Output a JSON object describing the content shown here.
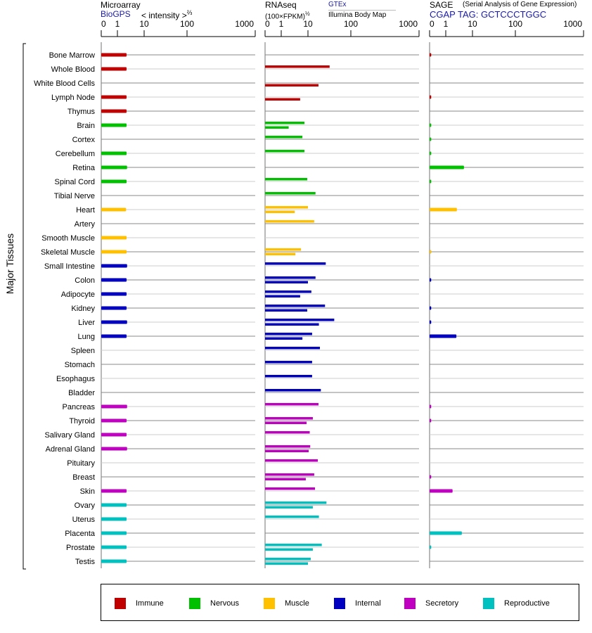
{
  "header": {
    "microarray_title": "Microarray",
    "microarray_source": "BioGPS",
    "microarray_scale": "< intensity >",
    "microarray_exponent": "⅔",
    "rnaseq_title": "RNAseq",
    "rnaseq_scale": "(100×FPKM)",
    "rnaseq_exponent": "½",
    "rnaseq_source_top": "GTEx",
    "rnaseq_source_bottom": "Illumina Body Map",
    "sage_title": "SAGE",
    "sage_subtitle": "(Serial Analysis of Gene Expression)",
    "sage_tag": "CGAP TAG: GCTCCCTGGC"
  },
  "y_group_label": "Major Tissues",
  "colors": {
    "Immune": "#c00000",
    "Nervous": "#00c000",
    "Muscle": "#ffc000",
    "Internal": "#0000c0",
    "Secretory": "#c000c0",
    "Reproductive": "#00c0c0"
  },
  "legend": [
    "Immune",
    "Nervous",
    "Muscle",
    "Internal",
    "Secretory",
    "Reproductive"
  ],
  "chart_data": {
    "type": "bar",
    "orientation": "horizontal",
    "axis_ticks": [
      "0",
      "1",
      "10",
      "100",
      "1000"
    ],
    "tick_values": [
      0,
      1,
      10,
      100,
      1000
    ],
    "xlim": [
      0,
      1000
    ],
    "grid": true,
    "legend_placement": "bottom",
    "tissues": [
      {
        "name": "Bone Marrow",
        "group": "Immune"
      },
      {
        "name": "Whole Blood",
        "group": "Immune"
      },
      {
        "name": "White Blood Cells",
        "group": "Immune"
      },
      {
        "name": "Lymph Node",
        "group": "Immune"
      },
      {
        "name": "Thymus",
        "group": "Immune"
      },
      {
        "name": "Brain",
        "group": "Nervous"
      },
      {
        "name": "Cortex",
        "group": "Nervous"
      },
      {
        "name": "Cerebellum",
        "group": "Nervous"
      },
      {
        "name": "Retina",
        "group": "Nervous"
      },
      {
        "name": "Spinal Cord",
        "group": "Nervous"
      },
      {
        "name": "Tibial Nerve",
        "group": "Nervous"
      },
      {
        "name": "Heart",
        "group": "Muscle"
      },
      {
        "name": "Artery",
        "group": "Muscle"
      },
      {
        "name": "Smooth Muscle",
        "group": "Muscle"
      },
      {
        "name": "Skeletal Muscle",
        "group": "Muscle"
      },
      {
        "name": "Small Intestine",
        "group": "Internal"
      },
      {
        "name": "Colon",
        "group": "Internal"
      },
      {
        "name": "Adipocyte",
        "group": "Internal"
      },
      {
        "name": "Kidney",
        "group": "Internal"
      },
      {
        "name": "Liver",
        "group": "Internal"
      },
      {
        "name": "Lung",
        "group": "Internal"
      },
      {
        "name": "Spleen",
        "group": "Internal"
      },
      {
        "name": "Stomach",
        "group": "Internal"
      },
      {
        "name": "Esophagus",
        "group": "Internal"
      },
      {
        "name": "Bladder",
        "group": "Internal"
      },
      {
        "name": "Pancreas",
        "group": "Secretory"
      },
      {
        "name": "Thyroid",
        "group": "Secretory"
      },
      {
        "name": "Salivary Gland",
        "group": "Secretory"
      },
      {
        "name": "Adrenal Gland",
        "group": "Secretory"
      },
      {
        "name": "Pituitary",
        "group": "Secretory"
      },
      {
        "name": "Breast",
        "group": "Secretory"
      },
      {
        "name": "Skin",
        "group": "Secretory"
      },
      {
        "name": "Ovary",
        "group": "Reproductive"
      },
      {
        "name": "Uterus",
        "group": "Reproductive"
      },
      {
        "name": "Placenta",
        "group": "Reproductive"
      },
      {
        "name": "Prostate",
        "group": "Reproductive"
      },
      {
        "name": "Testis",
        "group": "Reproductive"
      }
    ],
    "microarray": [
      2.2,
      2.2,
      null,
      2.2,
      2.2,
      2.2,
      null,
      2.2,
      2.3,
      2.2,
      null,
      2.1,
      null,
      2.2,
      2.2,
      2.3,
      2.2,
      2.2,
      2.2,
      2.3,
      2.2,
      null,
      null,
      null,
      null,
      2.3,
      2.2,
      2.2,
      2.3,
      null,
      null,
      2.2,
      2.2,
      2.2,
      2.2,
      2.2,
      2.2
    ],
    "rnaseq_gtex": [
      null,
      32,
      null,
      null,
      null,
      7.4,
      6.2,
      7.4,
      null,
      9.4,
      15,
      10,
      14,
      null,
      5.5,
      26,
      15,
      12,
      25,
      41,
      12.5,
      19,
      12.5,
      12.5,
      20,
      17.6,
      13,
      11,
      11.3,
      17,
      14,
      14.6,
      27,
      18,
      null,
      21,
      11.6
    ],
    "rnaseq_illumina": [
      null,
      null,
      17.6,
      5.1,
      null,
      1.9,
      null,
      null,
      null,
      null,
      null,
      3.2,
      null,
      null,
      3.4,
      null,
      10,
      5.1,
      9.4,
      18,
      6.2,
      null,
      null,
      null,
      null,
      null,
      8.9,
      null,
      10.4,
      null,
      8.3,
      null,
      13,
      null,
      null,
      13,
      10
    ],
    "sage": [
      0.1,
      null,
      null,
      0.1,
      null,
      0.1,
      0.1,
      0.1,
      4.8,
      0.1,
      null,
      2.6,
      null,
      null,
      0.1,
      null,
      0.1,
      null,
      0.1,
      0.1,
      2.5,
      null,
      null,
      null,
      null,
      0.1,
      0.1,
      null,
      null,
      null,
      0.1,
      1.8,
      null,
      null,
      4.0,
      0.1,
      null
    ]
  }
}
